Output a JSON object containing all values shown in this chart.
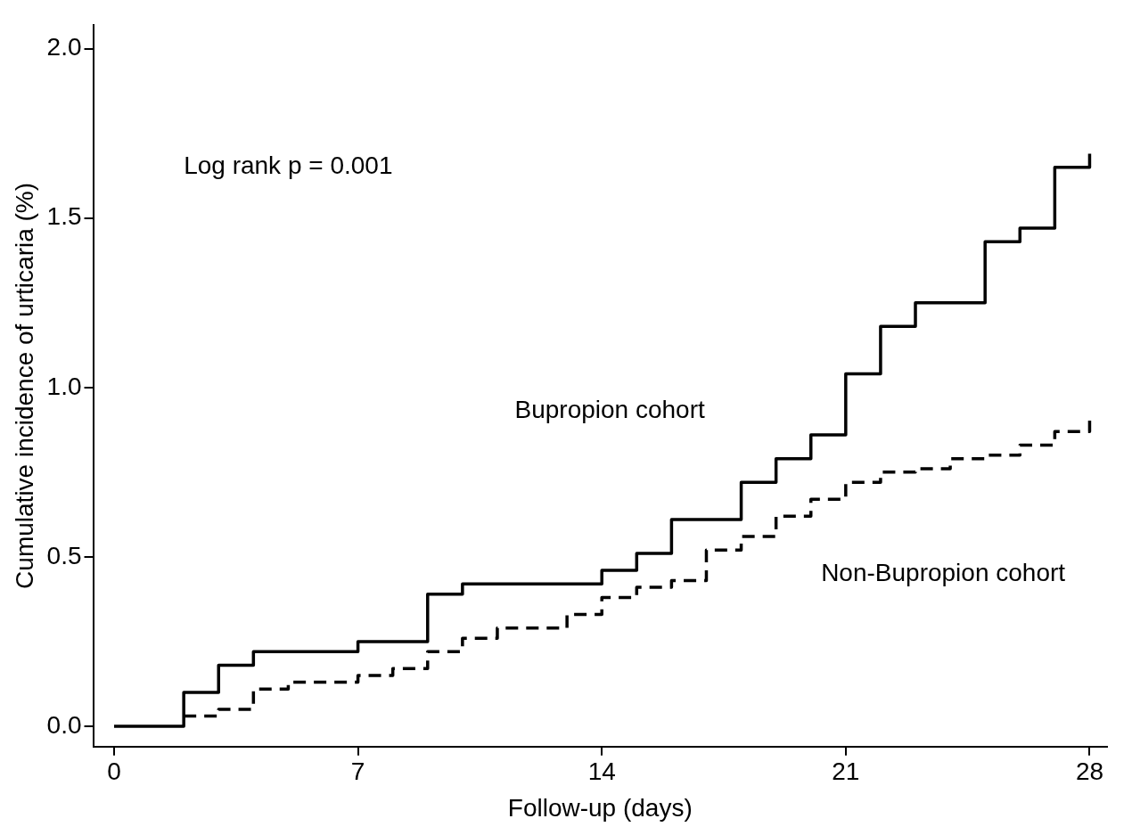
{
  "chart_data": {
    "type": "step",
    "xlabel": "Follow-up (days)",
    "ylabel": "Cumulative incidence of urticaria (%)",
    "xlim": [
      -0.6,
      28.5
    ],
    "xticks": [
      0,
      7,
      14,
      21,
      28
    ],
    "ylim": [
      -0.06,
      2.07
    ],
    "yticks": [
      {
        "value": 0,
        "label": "0.0"
      },
      {
        "value": 0.5,
        "label": "0.5"
      },
      {
        "value": 1,
        "label": "1.0"
      },
      {
        "value": 1.5,
        "label": "1.5"
      },
      {
        "value": 2,
        "label": "2.0"
      }
    ],
    "grid": false,
    "legend": false,
    "marker": "none",
    "annotations": [
      "Log rank p = 0.001"
    ],
    "series": [
      {
        "name": "Bupropion cohort",
        "color": "#000000",
        "line_style": "solid",
        "x": [
          0,
          2,
          3,
          4,
          7,
          9,
          10,
          14,
          15,
          16,
          18,
          19,
          20,
          21,
          22,
          23,
          25,
          26,
          27,
          28
        ],
        "values": [
          0,
          0.1,
          0.18,
          0.22,
          0.25,
          0.39,
          0.42,
          0.46,
          0.51,
          0.61,
          0.72,
          0.79,
          0.86,
          1.04,
          1.18,
          1.25,
          1.43,
          1.47,
          1.65,
          1.69
        ]
      },
      {
        "name": "Non-Bupropion cohort",
        "color": "#000000",
        "line_style": "dashed",
        "x": [
          2,
          3,
          4,
          5,
          7,
          8,
          9,
          10,
          11,
          13,
          14,
          15,
          16,
          17,
          18,
          19,
          20,
          21,
          22,
          23,
          24,
          25,
          26,
          27,
          28
        ],
        "values": [
          0.03,
          0.05,
          0.11,
          0.13,
          0.15,
          0.17,
          0.22,
          0.26,
          0.29,
          0.33,
          0.38,
          0.41,
          0.43,
          0.52,
          0.56,
          0.62,
          0.67,
          0.72,
          0.75,
          0.76,
          0.79,
          0.8,
          0.83,
          0.87,
          0.91
        ]
      }
    ]
  }
}
